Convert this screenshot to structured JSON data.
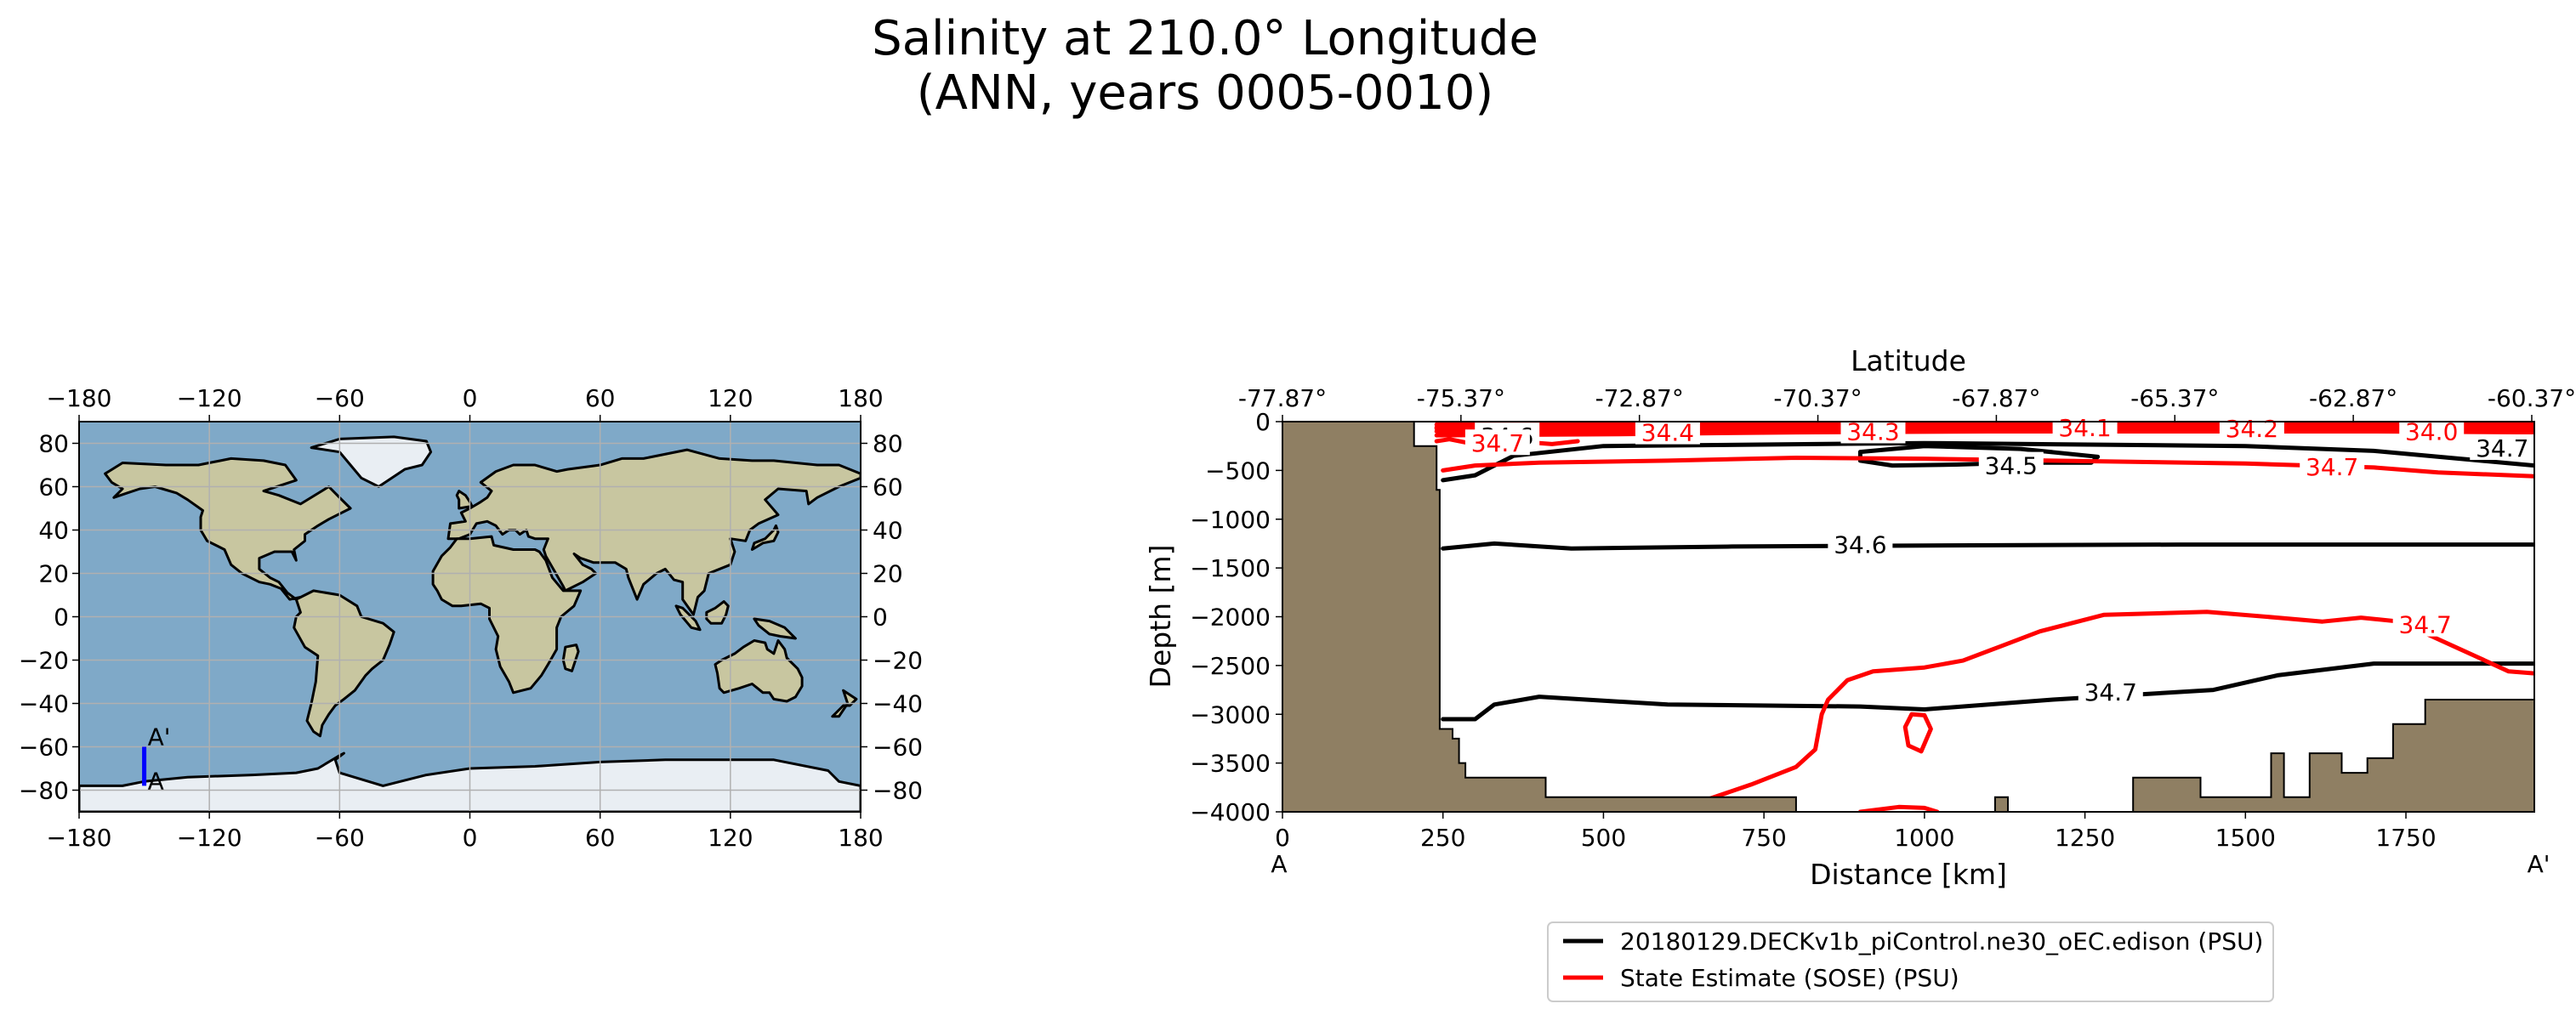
{
  "title_line1": "Salinity at 210.0° Longitude",
  "title_line2": "(ANN, years 0005-0010)",
  "colors": {
    "model": "#000000",
    "obs": "#ff0000",
    "land": "#8f7f63",
    "section_line": "#0000ff",
    "ocean": "#7fa9c8",
    "map_land": "#c8c6a0",
    "ice": "#e9eef3",
    "grid": "#b0b0b0"
  },
  "map": {
    "x_ticks": [
      "−180",
      "−120",
      "−60",
      "0",
      "60",
      "120",
      "180"
    ],
    "y_ticks": [
      "80",
      "60",
      "40",
      "20",
      "0",
      "−20",
      "−40",
      "−60",
      "−80"
    ],
    "section": {
      "lon": -150,
      "lat_start": -78,
      "lat_end": -60,
      "label_start": "A",
      "label_end": "A'"
    }
  },
  "chart_data": {
    "type": "contour-section",
    "top_axis_label": "Latitude",
    "top_ticks": [
      "-77.87°",
      "-75.37°",
      "-72.87°",
      "-70.37°",
      "-67.87°",
      "-65.37°",
      "-62.87°",
      "-60.37°"
    ],
    "top_tick_distance": [
      0,
      278,
      556,
      834,
      1112,
      1390,
      1668,
      1946
    ],
    "xlabel": "Distance [km]",
    "ylabel": "Depth [m]",
    "xlim": [
      0,
      1950
    ],
    "ylim": [
      -4000,
      0
    ],
    "x_ticks": [
      0,
      250,
      500,
      750,
      1000,
      1250,
      1500,
      1750
    ],
    "y_ticks": [
      0,
      -500,
      -1000,
      -1500,
      -2000,
      -2500,
      -3000,
      -3500,
      -4000
    ],
    "x_tick_labels": [
      "0",
      "250",
      "500",
      "750",
      "1000",
      "1250",
      "1500",
      "1750"
    ],
    "y_tick_labels": [
      "0",
      "−500",
      "−1000",
      "−1500",
      "−2000",
      "−2500",
      "−3000",
      "−3500",
      "−4000"
    ],
    "start_label": "A",
    "end_label": "A'",
    "bathymetry": [
      [
        0,
        0
      ],
      [
        205,
        0
      ],
      [
        205,
        -250
      ],
      [
        240,
        -250
      ],
      [
        240,
        -700
      ],
      [
        245,
        -700
      ],
      [
        245,
        -3150
      ],
      [
        265,
        -3150
      ],
      [
        265,
        -3250
      ],
      [
        275,
        -3250
      ],
      [
        275,
        -3500
      ],
      [
        285,
        -3500
      ],
      [
        285,
        -3650
      ],
      [
        410,
        -3650
      ],
      [
        410,
        -3850
      ],
      [
        800,
        -3850
      ],
      [
        800,
        -4000
      ],
      [
        1110,
        -4000
      ],
      [
        1110,
        -3850
      ],
      [
        1130,
        -3850
      ],
      [
        1130,
        -4000
      ],
      [
        1325,
        -4000
      ],
      [
        1325,
        -3650
      ],
      [
        1430,
        -3650
      ],
      [
        1430,
        -3850
      ],
      [
        1540,
        -3850
      ],
      [
        1540,
        -3400
      ],
      [
        1560,
        -3400
      ],
      [
        1560,
        -3850
      ],
      [
        1600,
        -3850
      ],
      [
        1600,
        -3400
      ],
      [
        1650,
        -3400
      ],
      [
        1650,
        -3600
      ],
      [
        1690,
        -3600
      ],
      [
        1690,
        -3450
      ],
      [
        1730,
        -3450
      ],
      [
        1730,
        -3100
      ],
      [
        1780,
        -3100
      ],
      [
        1780,
        -2850
      ],
      [
        1950,
        -2850
      ],
      [
        1950,
        -4000
      ],
      [
        0,
        -4000
      ]
    ],
    "series": [
      {
        "name": "20180129.DECKv1b_piControl.ne30_oEC.edison (PSU)",
        "color": "#000000",
        "contours": [
          {
            "level": "34.6",
            "label_at": [
              350,
              -150
            ],
            "points": [
              [
                250,
                -100
              ],
              [
                500,
                -90
              ],
              [
                800,
                -80
              ],
              [
                1100,
                -80
              ],
              [
                1400,
                -80
              ],
              [
                1700,
                -90
              ],
              [
                1950,
                -100
              ]
            ]
          },
          {
            "level": "34.5",
            "label_at": [
              1135,
              -450
            ],
            "points": [
              [
                900,
                -310
              ],
              [
                1000,
                -250
              ],
              [
                1150,
                -280
              ],
              [
                1270,
                -360
              ],
              [
                1260,
                -420
              ],
              [
                1150,
                -420
              ],
              [
                1050,
                -440
              ],
              [
                950,
                -450
              ],
              [
                900,
                -400
              ],
              [
                900,
                -310
              ]
            ]
          },
          {
            "level": "34.7",
            "label_at": [
              1900,
              -270
            ],
            "points": [
              [
                250,
                -600
              ],
              [
                300,
                -550
              ],
              [
                330,
                -450
              ],
              [
                360,
                -350
              ],
              [
                500,
                -250
              ],
              [
                1000,
                -220
              ],
              [
                1500,
                -250
              ],
              [
                1700,
                -300
              ],
              [
                1950,
                -450
              ]
            ]
          },
          {
            "level": "34.6",
            "label_at": [
              900,
              -1260
            ],
            "points": [
              [
                250,
                -1300
              ],
              [
                330,
                -1250
              ],
              [
                450,
                -1300
              ],
              [
                700,
                -1280
              ],
              [
                1000,
                -1270
              ],
              [
                1400,
                -1260
              ],
              [
                1950,
                -1260
              ]
            ]
          },
          {
            "level": "34.7",
            "label_at": [
              1290,
              -2770
            ],
            "points": [
              [
                250,
                -3050
              ],
              [
                300,
                -3050
              ],
              [
                330,
                -2900
              ],
              [
                400,
                -2820
              ],
              [
                600,
                -2900
              ],
              [
                900,
                -2920
              ],
              [
                1000,
                -2950
              ],
              [
                1200,
                -2850
              ],
              [
                1450,
                -2750
              ],
              [
                1550,
                -2600
              ],
              [
                1700,
                -2480
              ],
              [
                1950,
                -2480
              ]
            ]
          }
        ]
      },
      {
        "name": "State Estimate (SOSE) (PSU)",
        "color": "#ff0000",
        "contours": [
          {
            "level": "34.4",
            "label_at": [
              600,
              -110
            ],
            "points": [
              [
                240,
                -140
              ],
              [
                500,
                -130
              ],
              [
                800,
                -110
              ],
              [
                1100,
                -100
              ],
              [
                1400,
                -100
              ],
              [
                1700,
                -100
              ],
              [
                1950,
                -110
              ]
            ]
          },
          {
            "level": "34.3",
            "label_at": [
              920,
              -100
            ],
            "points": [
              [
                240,
                -100
              ],
              [
                600,
                -90
              ],
              [
                1000,
                -80
              ],
              [
                1400,
                -80
              ],
              [
                1950,
                -80
              ]
            ]
          },
          {
            "level": "34.1",
            "label_at": [
              1250,
              -60
            ],
            "points": [
              [
                240,
                -70
              ],
              [
                700,
                -60
              ],
              [
                1200,
                -50
              ],
              [
                1950,
                -50
              ]
            ]
          },
          {
            "level": "34.2",
            "label_at": [
              1510,
              -70
            ],
            "points": [
              [
                240,
                -60
              ],
              [
                800,
                -40
              ],
              [
                1600,
                -40
              ],
              [
                1950,
                -40
              ]
            ]
          },
          {
            "level": "34.0",
            "label_at": [
              1790,
              -100
            ],
            "points": [
              [
                240,
                -30
              ],
              [
                1000,
                -20
              ],
              [
                1950,
                -20
              ]
            ]
          },
          {
            "level": "34.7",
            "label_at": [
              335,
              -220
            ],
            "points": [
              [
                240,
                -200
              ],
              [
                260,
                -180
              ],
              [
                290,
                -220
              ],
              [
                340,
                -260
              ],
              [
                380,
                -210
              ],
              [
                420,
                -230
              ],
              [
                460,
                -200
              ]
            ]
          },
          {
            "level": "34.7",
            "label_at": [
              1635,
              -460
            ],
            "points": [
              [
                250,
                -500
              ],
              [
                300,
                -450
              ],
              [
                400,
                -420
              ],
              [
                600,
                -400
              ],
              [
                800,
                -370
              ],
              [
                1000,
                -380
              ],
              [
                1200,
                -400
              ],
              [
                1500,
                -430
              ],
              [
                1700,
                -470
              ],
              [
                1800,
                -520
              ],
              [
                1950,
                -560
              ]
            ]
          },
          {
            "level": "34.7",
            "label_at": [
              1780,
              -2080
            ],
            "points": [
              [
                520,
                -4000
              ],
              [
                550,
                -3980
              ],
              [
                650,
                -3900
              ],
              [
                730,
                -3720
              ],
              [
                800,
                -3540
              ],
              [
                830,
                -3360
              ],
              [
                840,
                -3000
              ],
              [
                850,
                -2850
              ],
              [
                880,
                -2650
              ],
              [
                920,
                -2560
              ],
              [
                1000,
                -2520
              ],
              [
                1060,
                -2450
              ],
              [
                1120,
                -2300
              ],
              [
                1180,
                -2150
              ],
              [
                1280,
                -1980
              ],
              [
                1440,
                -1950
              ],
              [
                1550,
                -2010
              ],
              [
                1620,
                -2050
              ],
              [
                1680,
                -2010
              ],
              [
                1740,
                -2050
              ],
              [
                1800,
                -2230
              ],
              [
                1860,
                -2410
              ],
              [
                1910,
                -2560
              ],
              [
                1950,
                -2580
              ]
            ]
          },
          {
            "level": "34.7",
            "label_at": null,
            "points": [
              [
                980,
                -3000
              ],
              [
                1000,
                -3010
              ],
              [
                1010,
                -3150
              ],
              [
                995,
                -3380
              ],
              [
                975,
                -3320
              ],
              [
                970,
                -3130
              ],
              [
                980,
                -3000
              ]
            ]
          },
          {
            "level": "34.7",
            "label_at": null,
            "points": [
              [
                900,
                -4000
              ],
              [
                960,
                -3950
              ],
              [
                1000,
                -3960
              ],
              [
                1020,
                -4000
              ]
            ]
          }
        ]
      }
    ],
    "legend": {
      "placement": "lower-center"
    }
  }
}
